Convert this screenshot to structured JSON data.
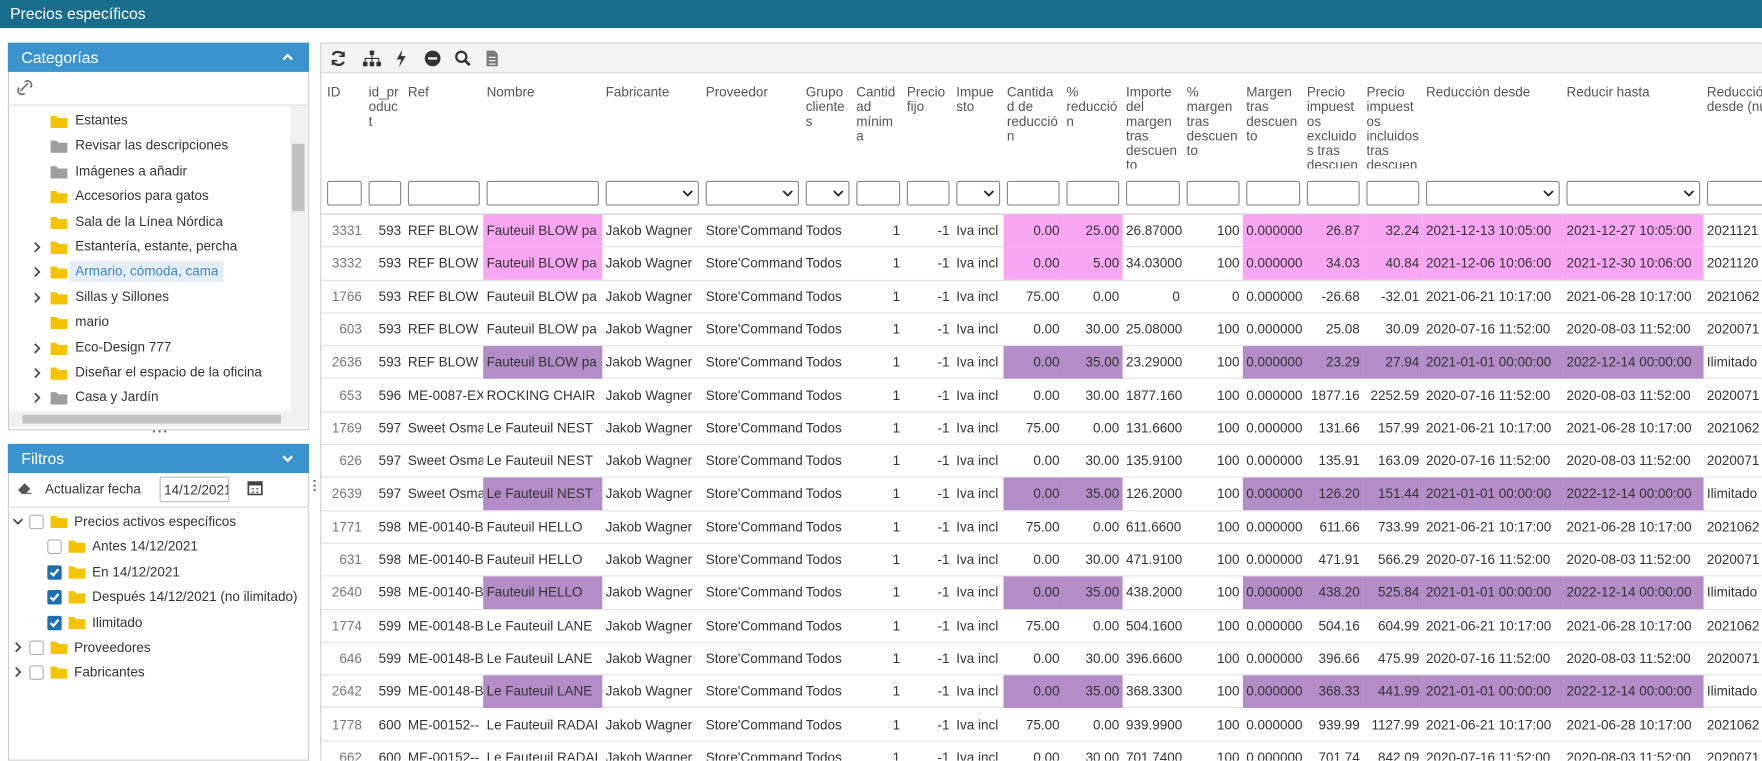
{
  "header": {
    "title": "Precios específicos"
  },
  "categories": {
    "title": "Categorías",
    "items": [
      {
        "label": "Estantes",
        "expandable": false,
        "folder": "#f5c400",
        "selected": false
      },
      {
        "label": "Revisar las descripciones",
        "expandable": false,
        "folder": "#9e9e9e",
        "selected": false
      },
      {
        "label": "Imágenes a añadir",
        "expandable": false,
        "folder": "#9e9e9e",
        "selected": false
      },
      {
        "label": "Accesorios para gatos",
        "expandable": false,
        "folder": "#f5c400",
        "selected": false
      },
      {
        "label": "Sala de la Línea Nórdica",
        "expandable": false,
        "folder": "#f5c400",
        "selected": false
      },
      {
        "label": "Estantería, estante, percha",
        "expandable": true,
        "folder": "#f5c400",
        "selected": false
      },
      {
        "label": "Armario, cómoda, cama",
        "expandable": true,
        "folder": "#f5c400",
        "selected": true
      },
      {
        "label": "Sillas y Sillones",
        "expandable": true,
        "folder": "#f5c400",
        "selected": false
      },
      {
        "label": "mario",
        "expandable": false,
        "folder": "#f5c400",
        "selected": false
      },
      {
        "label": "Eco-Design 777",
        "expandable": true,
        "folder": "#f5c400",
        "selected": false
      },
      {
        "label": "Diseñar el espacio de la oficina",
        "expandable": true,
        "folder": "#f5c400",
        "selected": false
      },
      {
        "label": "Casa y Jardín",
        "expandable": true,
        "folder": "#9e9e9e",
        "selected": false
      }
    ]
  },
  "filters": {
    "title": "Filtros",
    "update_label": "Actualizar fecha",
    "date_value": "14/12/2021",
    "tree": [
      {
        "label": "Precios activos específicos",
        "level": 0,
        "expanded": true,
        "checked": false
      },
      {
        "label": "Antes 14/12/2021",
        "level": 1,
        "expanded": false,
        "checked": false
      },
      {
        "label": "En 14/12/2021",
        "level": 1,
        "expanded": false,
        "checked": true
      },
      {
        "label": "Después 14/12/2021 (no ilimitado)",
        "level": 1,
        "expanded": false,
        "checked": true
      },
      {
        "label": "Ilimitado",
        "level": 1,
        "expanded": false,
        "checked": true
      },
      {
        "label": "Proveedores",
        "level": 0,
        "expanded": false,
        "checked": false
      },
      {
        "label": "Fabricantes",
        "level": 0,
        "expanded": false,
        "checked": false
      }
    ]
  },
  "grid": {
    "columns": [
      "ID",
      "id_product",
      "Ref",
      "Nombre",
      "Fabricante",
      "Proveedor",
      "Grupo clientes",
      "Cantidad mínima",
      "Precio fijo",
      "Impuesto",
      "Cantidad de reducción",
      "% reducción",
      "Importe del margen tras descuento",
      "% margen tras descuento",
      "Margen tras descuento",
      "Precio impuestos excluidos tras descuento",
      "Precio impuestos incluidos tras descuento",
      "Reducción desde",
      "Reducir hasta",
      "Reducción desde (num)"
    ],
    "rows": [
      {
        "highlight": "#f8a6f4",
        "cells": [
          "3331",
          "593",
          "REF BLOW",
          "Fauteuil BLOW pa",
          "Jakob Wagner",
          "Store'Commander",
          "Todos",
          "1",
          "-1",
          "Iva incl",
          "0.00",
          "25.00",
          "26.87000",
          "100",
          "0.000000",
          "26.87",
          "32.24",
          "2021-12-13 10:05:00",
          "2021-12-27 10:05:00",
          "2021121"
        ]
      },
      {
        "highlight": "#f8a6f4",
        "cells": [
          "3332",
          "593",
          "REF BLOW",
          "Fauteuil BLOW pa",
          "Jakob Wagner",
          "Store'Commander",
          "Todos",
          "1",
          "-1",
          "Iva incl",
          "0.00",
          "5.00",
          "34.03000",
          "100",
          "0.000000",
          "34.03",
          "40.84",
          "2021-12-06 10:06:00",
          "2021-12-30 10:06:00",
          "2021120"
        ]
      },
      {
        "highlight": null,
        "cells": [
          "1766",
          "593",
          "REF BLOW",
          "Fauteuil BLOW pa",
          "Jakob Wagner",
          "Store'Commander",
          "Todos",
          "1",
          "-1",
          "Iva incl",
          "75.00",
          "0.00",
          "0",
          "0",
          "0.000000",
          "-26.68",
          "-32.01",
          "2021-06-21 10:17:00",
          "2021-06-28 10:17:00",
          "2021062"
        ]
      },
      {
        "highlight": null,
        "cells": [
          "603",
          "593",
          "REF BLOW",
          "Fauteuil BLOW pa",
          "Jakob Wagner",
          "Store'Commander",
          "Todos",
          "1",
          "-1",
          "Iva incl",
          "0.00",
          "30.00",
          "25.08000",
          "100",
          "0.000000",
          "25.08",
          "30.09",
          "2020-07-16 11:52:00",
          "2020-08-03 11:52:00",
          "2020071"
        ]
      },
      {
        "highlight": "#b48cc8",
        "cells": [
          "2636",
          "593",
          "REF BLOW",
          "Fauteuil BLOW pa",
          "Jakob Wagner",
          "Store'Commander",
          "Todos",
          "1",
          "-1",
          "Iva incl",
          "0.00",
          "35.00",
          "23.29000",
          "100",
          "0.000000",
          "23.29",
          "27.94",
          "2021-01-01 00:00:00",
          "2022-12-14 00:00:00",
          "Ilimitado"
        ]
      },
      {
        "highlight": null,
        "cells": [
          "653",
          "596",
          "ME-0087-EX",
          "ROCKING CHAIR",
          "Jakob Wagner",
          "Store'Commander",
          "Todos",
          "1",
          "-1",
          "Iva incl",
          "0.00",
          "30.00",
          "1877.160",
          "100",
          "0.000000",
          "1877.16",
          "2252.59",
          "2020-07-16 11:52:00",
          "2020-08-03 11:52:00",
          "2020071"
        ]
      },
      {
        "highlight": null,
        "cells": [
          "1769",
          "597",
          "Sweet Osma",
          "Le Fauteuil NEST",
          "Jakob Wagner",
          "Store'Commander",
          "Todos",
          "1",
          "-1",
          "Iva incl",
          "75.00",
          "0.00",
          "131.6600",
          "100",
          "0.000000",
          "131.66",
          "157.99",
          "2021-06-21 10:17:00",
          "2021-06-28 10:17:00",
          "2021062"
        ]
      },
      {
        "highlight": null,
        "cells": [
          "626",
          "597",
          "Sweet Osma",
          "Le Fauteuil NEST",
          "Jakob Wagner",
          "Store'Commander",
          "Todos",
          "1",
          "-1",
          "Iva incl",
          "0.00",
          "30.00",
          "135.9100",
          "100",
          "0.000000",
          "135.91",
          "163.09",
          "2020-07-16 11:52:00",
          "2020-08-03 11:52:00",
          "2020071"
        ]
      },
      {
        "highlight": "#b48cc8",
        "cells": [
          "2639",
          "597",
          "Sweet Osma",
          "Le Fauteuil NEST",
          "Jakob Wagner",
          "Store'Commander",
          "Todos",
          "1",
          "-1",
          "Iva incl",
          "0.00",
          "35.00",
          "126.2000",
          "100",
          "0.000000",
          "126.20",
          "151.44",
          "2021-01-01 00:00:00",
          "2022-12-14 00:00:00",
          "Ilimitado"
        ]
      },
      {
        "highlight": null,
        "cells": [
          "1771",
          "598",
          "ME-00140-B",
          "Fauteuil HELLO",
          "Jakob Wagner",
          "Store'Commander",
          "Todos",
          "1",
          "-1",
          "Iva incl",
          "75.00",
          "0.00",
          "611.6600",
          "100",
          "0.000000",
          "611.66",
          "733.99",
          "2021-06-21 10:17:00",
          "2021-06-28 10:17:00",
          "2021062"
        ]
      },
      {
        "highlight": null,
        "cells": [
          "631",
          "598",
          "ME-00140-B",
          "Fauteuil HELLO",
          "Jakob Wagner",
          "Store'Commander",
          "Todos",
          "1",
          "-1",
          "Iva incl",
          "0.00",
          "30.00",
          "471.9100",
          "100",
          "0.000000",
          "471.91",
          "566.29",
          "2020-07-16 11:52:00",
          "2020-08-03 11:52:00",
          "2020071"
        ]
      },
      {
        "highlight": "#b48cc8",
        "cells": [
          "2640",
          "598",
          "ME-00140-B",
          "Fauteuil HELLO",
          "Jakob Wagner",
          "Store'Commander",
          "Todos",
          "1",
          "-1",
          "Iva incl",
          "0.00",
          "35.00",
          "438.2000",
          "100",
          "0.000000",
          "438.20",
          "525.84",
          "2021-01-01 00:00:00",
          "2022-12-14 00:00:00",
          "Ilimitado"
        ]
      },
      {
        "highlight": null,
        "cells": [
          "1774",
          "599",
          "ME-00148-B",
          "Le Fauteuil LANE",
          "Jakob Wagner",
          "Store'Commander",
          "Todos",
          "1",
          "-1",
          "Iva incl",
          "75.00",
          "0.00",
          "504.1600",
          "100",
          "0.000000",
          "504.16",
          "604.99",
          "2021-06-21 10:17:00",
          "2021-06-28 10:17:00",
          "2021062"
        ]
      },
      {
        "highlight": null,
        "cells": [
          "646",
          "599",
          "ME-00148-B",
          "Le Fauteuil LANE",
          "Jakob Wagner",
          "Store'Commander",
          "Todos",
          "1",
          "-1",
          "Iva incl",
          "0.00",
          "30.00",
          "396.6600",
          "100",
          "0.000000",
          "396.66",
          "475.99",
          "2020-07-16 11:52:00",
          "2020-08-03 11:52:00",
          "2020071"
        ]
      },
      {
        "highlight": "#b48cc8",
        "cells": [
          "2642",
          "599",
          "ME-00148-B",
          "Le Fauteuil LANE",
          "Jakob Wagner",
          "Store'Commander",
          "Todos",
          "1",
          "-1",
          "Iva incl",
          "0.00",
          "35.00",
          "368.3300",
          "100",
          "0.000000",
          "368.33",
          "441.99",
          "2021-01-01 00:00:00",
          "2022-12-14 00:00:00",
          "Ilimitado"
        ]
      },
      {
        "highlight": null,
        "cells": [
          "1778",
          "600",
          "ME-00152--",
          "Le Fauteuil RADAI",
          "Jakob Wagner",
          "Store'Commander",
          "Todos",
          "1",
          "-1",
          "Iva incl",
          "75.00",
          "0.00",
          "939.9900",
          "100",
          "0.000000",
          "939.99",
          "1127.99",
          "2021-06-21 10:17:00",
          "2021-06-28 10:17:00",
          "2021062"
        ]
      },
      {
        "highlight": null,
        "cells": [
          "662",
          "600",
          "ME-00152--",
          "Le Fauteuil RADAI",
          "Jakob Wagner",
          "Store'Commander",
          "Todos",
          "1",
          "-1",
          "Iva incl",
          "0.00",
          "30.00",
          "701.7400",
          "100",
          "0.000000",
          "701.74",
          "842.09",
          "2020-07-16 11:52:00",
          "2020-08-03 11:52:00",
          "2020071"
        ]
      }
    ]
  }
}
